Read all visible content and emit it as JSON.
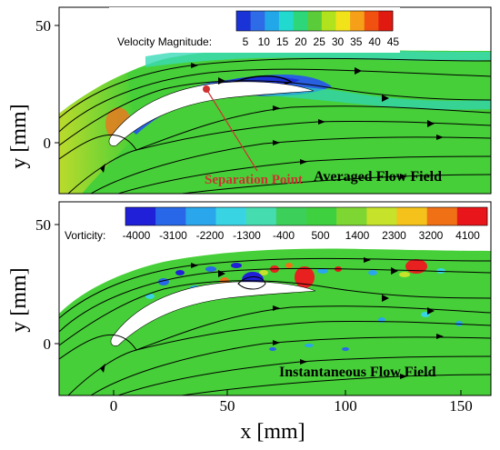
{
  "top_panel": {
    "title": "Averaged Flow Field",
    "legend": {
      "label": "Velocity Magnitude:",
      "ticks": [
        "5",
        "10",
        "15",
        "20",
        "25",
        "30",
        "35",
        "40",
        "45"
      ],
      "colors": [
        "#1a33d6",
        "#2e6be6",
        "#22a8e8",
        "#22d9cf",
        "#2ed67a",
        "#5acc3a",
        "#b0e21e",
        "#f2e21a",
        "#f5a018",
        "#f05010",
        "#e01a10"
      ]
    },
    "y_ticks": [
      "50",
      "0"
    ],
    "annotation": "Separation Point"
  },
  "bottom_panel": {
    "title": "Instantaneous Flow Field",
    "legend": {
      "label": "Vorticity:",
      "ticks": [
        "-4000",
        "-3100",
        "-2200",
        "-1300",
        "-400",
        "500",
        "1400",
        "2300",
        "3200",
        "4100"
      ],
      "colors": [
        "#2020d8",
        "#2868e8",
        "#2aa6ec",
        "#39d4e4",
        "#45dcb0",
        "#3ccf5a",
        "#3fd040",
        "#7ed632",
        "#c6e22a",
        "#f4c21a",
        "#f07016",
        "#e8161a"
      ]
    },
    "y_ticks": [
      "50",
      "0"
    ],
    "x_ticks": [
      "0",
      "50",
      "100",
      "150"
    ]
  },
  "axes": {
    "y_label": "y [mm]",
    "x_label": "x [mm]"
  },
  "colors": {
    "field_green": "#46cf38",
    "inlet_yellow": "#c8dc2a",
    "stagnation": "#e87a20",
    "separation_blue": "#2860e0",
    "annotation_red": "#d03030",
    "vortex_red": "#e82020"
  }
}
